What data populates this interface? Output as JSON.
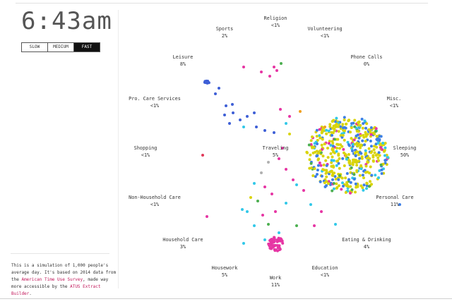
{
  "clock": {
    "time": "6:43am"
  },
  "speed": {
    "options": [
      {
        "label": "SLOW",
        "active": false
      },
      {
        "label": "MEDIUM",
        "active": false
      },
      {
        "label": "FAST",
        "active": true
      }
    ]
  },
  "note": {
    "text_1": "This is a simulation of 1,000 people's average day. It's based on 2014 data from the ",
    "link_1": "American Time Use Survey",
    "text_2": ", made way more accessible by the ",
    "link_2": "ATUS Extract Builder",
    "text_3": "."
  },
  "activities": [
    {
      "name": "Religion",
      "pct": "<1%"
    },
    {
      "name": "Sports",
      "pct": "2%"
    },
    {
      "name": "Volunteering",
      "pct": "<1%"
    },
    {
      "name": "Leisure",
      "pct": "8%"
    },
    {
      "name": "Phone Calls",
      "pct": "0%"
    },
    {
      "name": "Pro. Care Services",
      "pct": "<1%"
    },
    {
      "name": "Misc.",
      "pct": "<1%"
    },
    {
      "name": "Shopping",
      "pct": "<1%"
    },
    {
      "name": "Traveling",
      "pct": "5%"
    },
    {
      "name": "Sleeping",
      "pct": "50%"
    },
    {
      "name": "Non-Household Care",
      "pct": "<1%"
    },
    {
      "name": "Personal Care",
      "pct": "11%"
    },
    {
      "name": "Household Care",
      "pct": "3%"
    },
    {
      "name": "Eating & Drinking",
      "pct": "4%"
    },
    {
      "name": "Housework",
      "pct": "5%"
    },
    {
      "name": "Education",
      "pct": "<1%"
    },
    {
      "name": "Work",
      "pct": "11%"
    }
  ],
  "colors": {
    "yellow": "#d9d40a",
    "blue": "#3d7fe6",
    "light_blue": "#32c8e8",
    "pink": "#e636a4",
    "green": "#4caf50",
    "orange": "#f0a020",
    "grey": "#b0b0b0",
    "navy": "#3e5fd6",
    "red": "#e03a5a"
  }
}
